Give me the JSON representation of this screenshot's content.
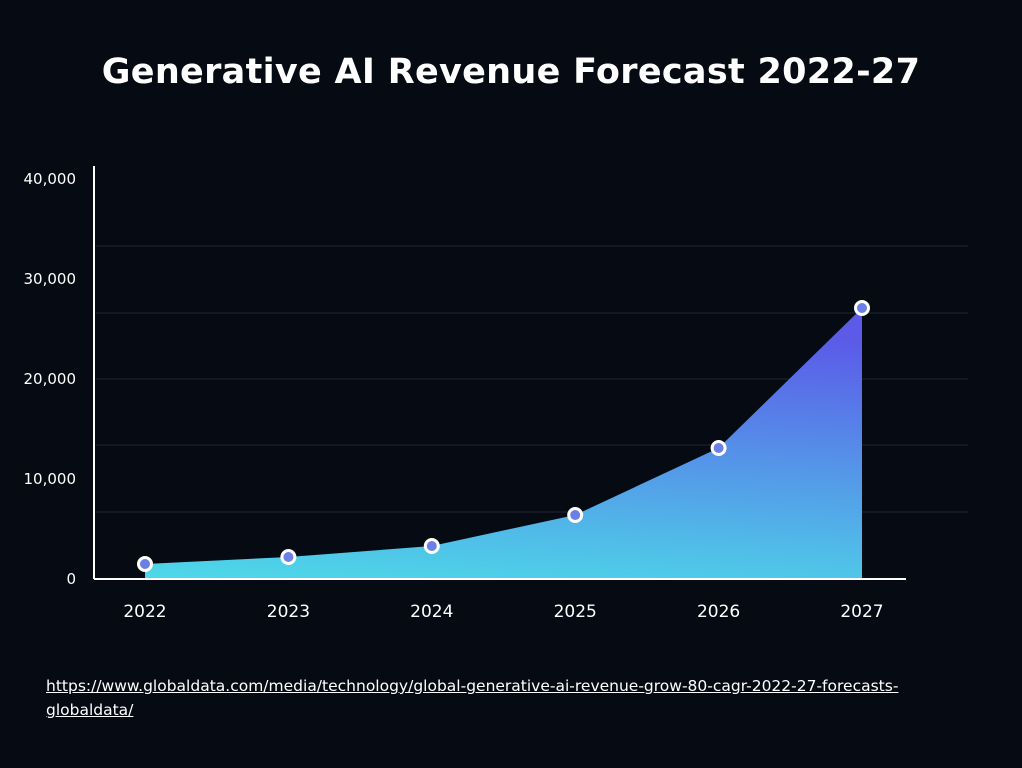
{
  "chart_data": {
    "type": "area",
    "title": "Generative AI Revenue Forecast 2022-27",
    "xlabel": "",
    "ylabel": "",
    "categories": [
      "2022",
      "2023",
      "2024",
      "2025",
      "2026",
      "2027"
    ],
    "values": [
      1400,
      2100,
      3200,
      6300,
      13000,
      27000
    ],
    "ylim": [
      0,
      40000
    ],
    "yticks": [
      "0",
      "10,000",
      "20,000",
      "30,000",
      "40,000"
    ],
    "grid": true,
    "colors": {
      "area_bottom": "#4dd9e8",
      "area_top": "#5b5be8",
      "marker_fill": "#6b7fe6",
      "marker_stroke": "#ffffff",
      "background": "#060a12"
    }
  },
  "source_link": "https://www.globaldata.com/media/technology/global-generative-ai-revenue-grow-80-cagr-2022-27-forecasts-globaldata/"
}
